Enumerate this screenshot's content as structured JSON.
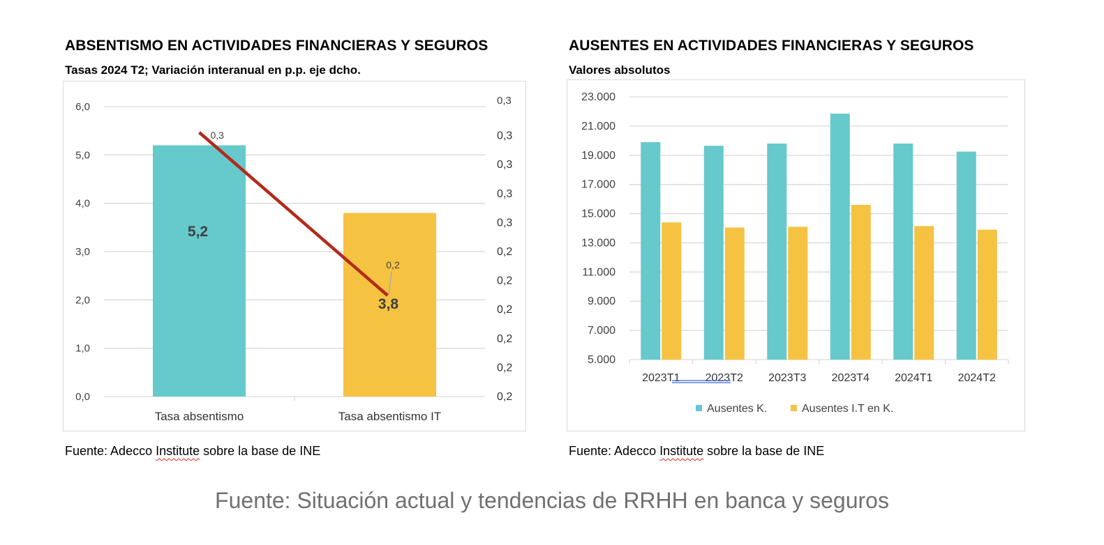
{
  "left": {
    "title": "ABSENTISMO EN ACTIVIDADES FINANCIERAS Y SEGUROS",
    "subtitle": "Tasas 2024 T2; Variación interanual en p.p. eje dcho.",
    "source_prefix": "Fuente: Adecco ",
    "source_flagged": "Institute",
    "source_suffix": " sobre la base de INE"
  },
  "right": {
    "title": "AUSENTES EN ACTIVIDADES FINANCIERAS Y SEGUROS",
    "subtitle": "Valores absolutos",
    "source_prefix": "Fuente: Adecco ",
    "source_flagged": "Institute",
    "source_suffix": " sobre la base de INE"
  },
  "footer": "Fuente: Situación actual y tendencias de RRHH en banca y seguros",
  "chart_data": [
    {
      "type": "bar",
      "categories": [
        "Tasa absentismo",
        "Tasa absentismo IT"
      ],
      "series": [
        {
          "type": "bar",
          "values": [
            5.2,
            3.8
          ],
          "labels": [
            "5,2",
            "3,8"
          ],
          "colors": [
            "#66c9cc",
            "#f5c242"
          ]
        },
        {
          "type": "line",
          "axis": "right",
          "values": [
            0.3,
            0.2
          ],
          "labels": [
            "0,3",
            "0,2"
          ],
          "color": "#b22a1b"
        }
      ],
      "ylim": [
        0,
        6
      ],
      "yticks": [
        "0,0",
        "1,0",
        "2,0",
        "3,0",
        "4,0",
        "5,0",
        "6,0"
      ],
      "y2ticks": [
        "0,2",
        "0,2",
        "0,2",
        "0,2",
        "0,2",
        "0,2",
        "0,3",
        "0,3",
        "0,3",
        "0,3",
        "0,3"
      ],
      "grid": true
    },
    {
      "type": "bar",
      "categories": [
        "2023T1",
        "2023T2",
        "2023T3",
        "2023T4",
        "2024T1",
        "2024T2"
      ],
      "series": [
        {
          "name": "Ausentes K.",
          "color": "#66c9cc",
          "values": [
            19900,
            19650,
            19800,
            21850,
            19800,
            19250
          ]
        },
        {
          "name": "Ausentes I.T en K.",
          "color": "#f5c242",
          "values": [
            14400,
            14050,
            14100,
            15600,
            14150,
            13900
          ]
        }
      ],
      "ylim": [
        5000,
        23000
      ],
      "yticks": [
        "5.000",
        "7.000",
        "9.000",
        "11.000",
        "13.000",
        "15.000",
        "17.000",
        "19.000",
        "21.000",
        "23.000"
      ],
      "legend": "bottom",
      "grid": true
    }
  ]
}
